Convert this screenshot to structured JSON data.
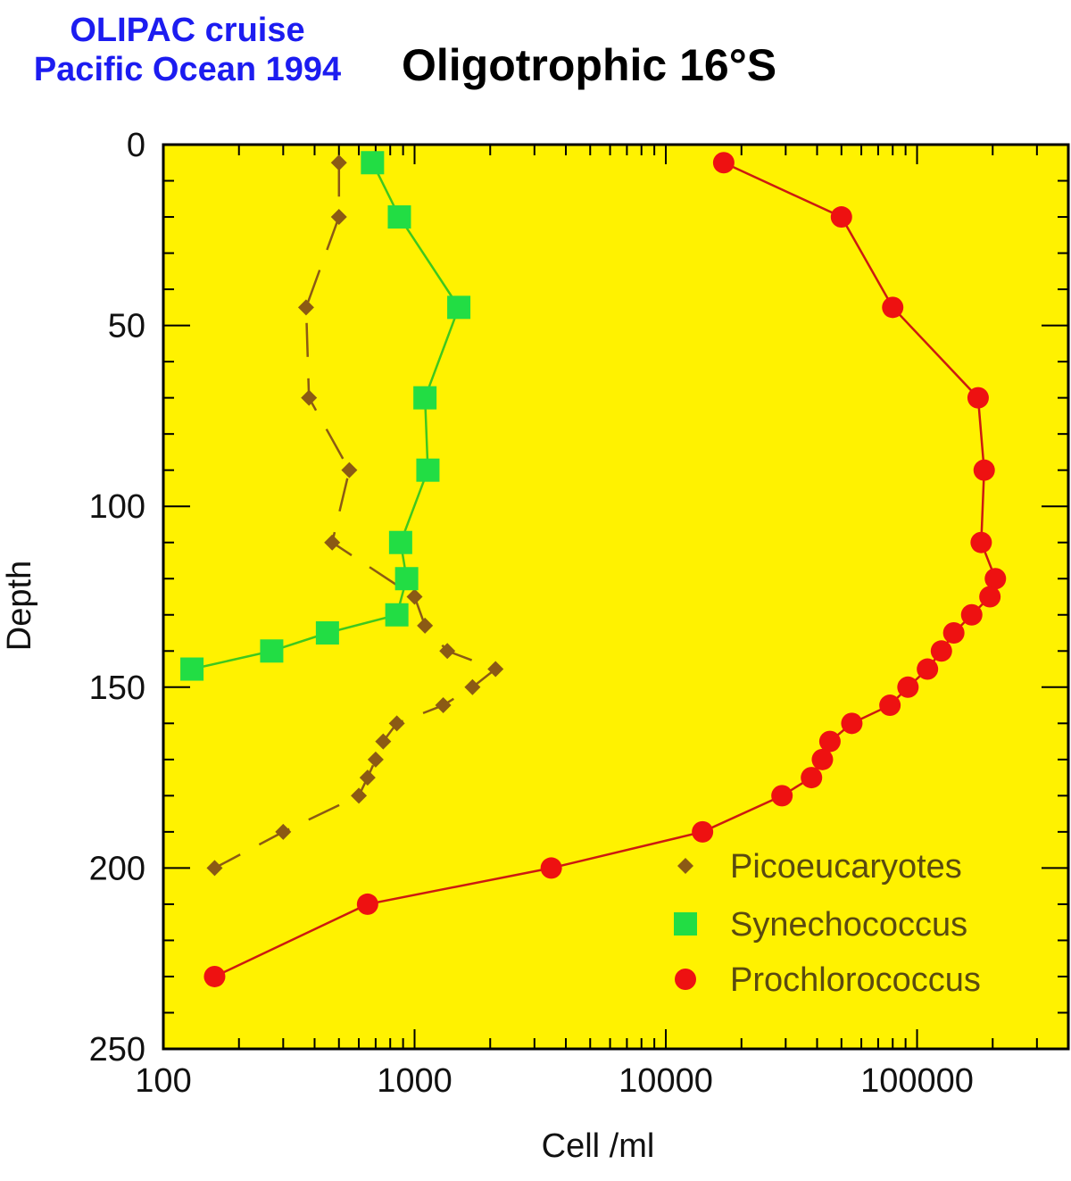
{
  "header": {
    "cruise_line1": "OLIPAC cruise",
    "cruise_line2": "Pacific Ocean 1994",
    "title": "Oligotrophic 16°S"
  },
  "colors": {
    "plot_background": "#fff200",
    "picoeukaryotes": "#8b5a14",
    "synechococcus": "#22dd44",
    "synechococcus_line": "#3ec81e",
    "prochlorococcus": "#ee1111",
    "prochlorococcus_line": "#cc1a10",
    "cruise_text": "#1c1cf0"
  },
  "chart_data": {
    "type": "scatter",
    "title": "Oligotrophic 16°S",
    "xlabel": "Cell /ml",
    "ylabel": "Depth",
    "xscale": "log",
    "xlim": [
      100,
      400000
    ],
    "ylim": [
      250,
      0
    ],
    "y_inverted": true,
    "grid": false,
    "legend_position": "bottom-right",
    "x_ticks": [
      {
        "value": 100,
        "label": "100"
      },
      {
        "value": 1000,
        "label": "1000"
      },
      {
        "value": 10000,
        "label": "10000"
      },
      {
        "value": 100000,
        "label": "100000"
      }
    ],
    "y_ticks": [
      {
        "value": 0,
        "label": "0"
      },
      {
        "value": 50,
        "label": "50"
      },
      {
        "value": 100,
        "label": "100"
      },
      {
        "value": 150,
        "label": "150"
      },
      {
        "value": 200,
        "label": "200"
      },
      {
        "value": 250,
        "label": "250"
      }
    ],
    "series": [
      {
        "name": "Picoeucaryotes",
        "marker": "diamond",
        "color": "#8b5a14",
        "line": "dashed",
        "points": [
          [
            500,
            5
          ],
          [
            500,
            20
          ],
          [
            370,
            45
          ],
          [
            380,
            70
          ],
          [
            550,
            90
          ],
          [
            470,
            110
          ],
          [
            1000,
            125
          ],
          [
            1100,
            133
          ],
          [
            1350,
            140
          ],
          [
            2100,
            145
          ],
          [
            1700,
            150
          ],
          [
            1300,
            155
          ],
          [
            850,
            160
          ],
          [
            750,
            165
          ],
          [
            700,
            170
          ],
          [
            650,
            175
          ],
          [
            600,
            180
          ],
          [
            300,
            190
          ],
          [
            160,
            200
          ]
        ]
      },
      {
        "name": "Synechococcus",
        "marker": "square",
        "color": "#22dd44",
        "line": "solid",
        "points": [
          [
            680,
            5
          ],
          [
            870,
            20
          ],
          [
            1500,
            45
          ],
          [
            1100,
            70
          ],
          [
            1130,
            90
          ],
          [
            880,
            110
          ],
          [
            930,
            120
          ],
          [
            850,
            130
          ],
          [
            450,
            135
          ],
          [
            270,
            140
          ],
          [
            130,
            145
          ]
        ]
      },
      {
        "name": "Prochlorococcus",
        "marker": "circle",
        "color": "#ee1111",
        "line": "solid",
        "points": [
          [
            17000,
            5
          ],
          [
            50000,
            20
          ],
          [
            80000,
            45
          ],
          [
            175000,
            70
          ],
          [
            185000,
            90
          ],
          [
            180000,
            110
          ],
          [
            205000,
            120
          ],
          [
            195000,
            125
          ],
          [
            165000,
            130
          ],
          [
            140000,
            135
          ],
          [
            125000,
            140
          ],
          [
            110000,
            145
          ],
          [
            92000,
            150
          ],
          [
            78000,
            155
          ],
          [
            55000,
            160
          ],
          [
            45000,
            165
          ],
          [
            42000,
            170
          ],
          [
            38000,
            175
          ],
          [
            29000,
            180
          ],
          [
            14000,
            190
          ],
          [
            3500,
            200
          ],
          [
            650,
            210
          ],
          [
            160,
            230
          ]
        ]
      }
    ]
  }
}
